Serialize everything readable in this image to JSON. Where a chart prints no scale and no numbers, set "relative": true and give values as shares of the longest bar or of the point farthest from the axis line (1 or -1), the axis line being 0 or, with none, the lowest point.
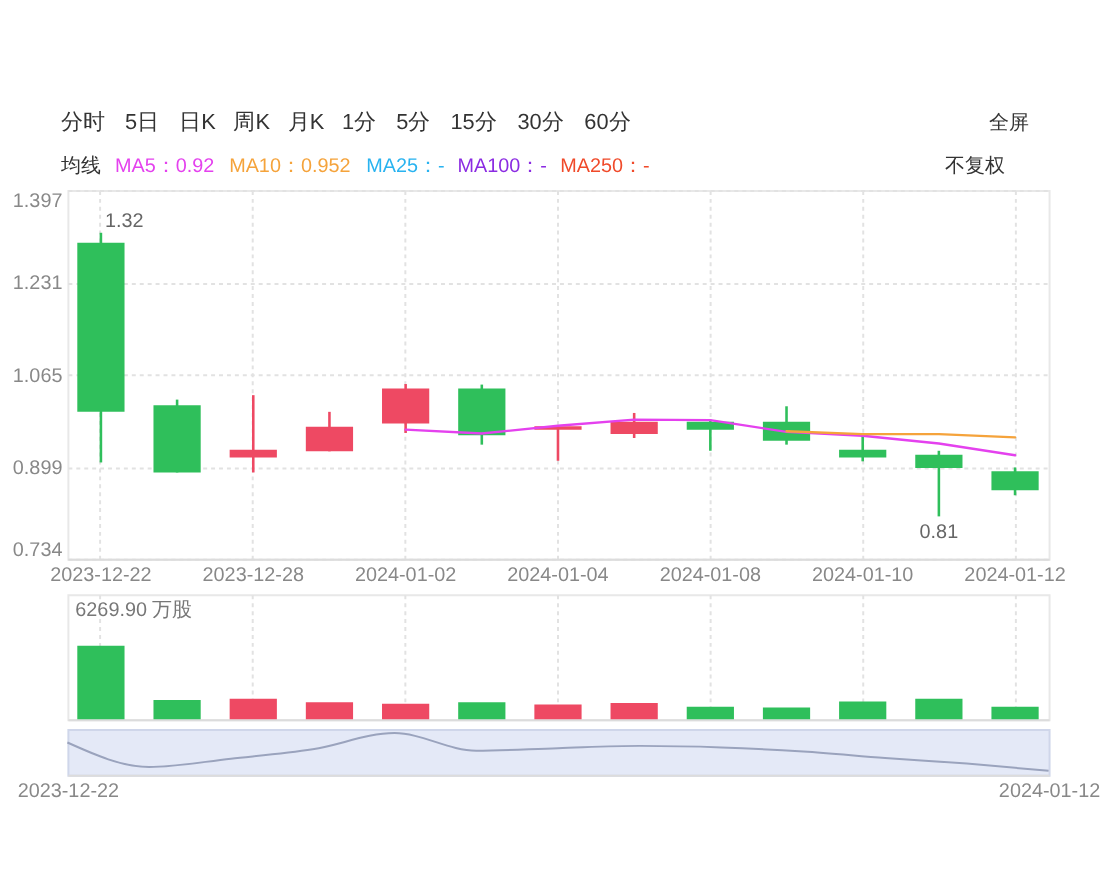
{
  "chart_data": [
    {
      "type": "candlestick",
      "annotations": [
        "分时",
        "5日",
        "日K",
        "周K",
        "月K",
        "1分",
        "5分",
        "15分",
        "30分",
        "60分",
        "全屏",
        "不复权",
        {
          "text": "1.32",
          "x": "2023-12-22",
          "y": 1.32
        },
        {
          "text": "0.81",
          "y": 0.81
        }
      ],
      "legend_title": "均线",
      "legend": "top left",
      "categories": [
        "2023-12-22",
        null,
        "2023-12-28",
        null,
        "2024-01-02",
        null,
        "2024-01-04",
        null,
        "2024-01-08",
        null,
        "2024-01-10",
        null,
        "2024-01-12"
      ],
      "ohlc": [
        [
          1.302,
          1.32,
          0.907,
          0.998
        ],
        [
          1.01,
          1.02,
          0.889,
          0.889
        ],
        [
          0.916,
          1.028,
          0.889,
          0.93
        ],
        [
          0.927,
          0.998,
          0.927,
          0.971
        ],
        [
          0.977,
          1.048,
          0.96,
          1.04
        ],
        [
          1.04,
          1.047,
          0.939,
          0.956
        ],
        [
          0.966,
          0.972,
          0.91,
          0.972
        ],
        [
          0.958,
          0.996,
          0.951,
          0.98
        ],
        [
          0.98,
          0.984,
          0.928,
          0.966
        ],
        [
          0.98,
          1.008,
          0.939,
          0.946
        ],
        [
          0.93,
          0.958,
          0.909,
          0.916
        ],
        [
          0.921,
          0.928,
          0.81,
          0.897
        ],
        [
          0.891,
          0.898,
          0.848,
          0.857
        ]
      ],
      "colors": [
        "#2fbf5b",
        "#2fbf5b",
        "#ee4963",
        "#ee4963",
        "#ee4963",
        "#2fbf5b",
        "#ee4963",
        "#ee4963",
        "#2fbf5b",
        "#2fbf5b",
        "#2fbf5b",
        "#2fbf5b",
        "#2fbf5b"
      ],
      "series": [
        {
          "name": "MA5：0.92",
          "type": "line",
          "color": "#e441ee",
          "values": [
            null,
            null,
            null,
            null,
            0.966,
            0.959,
            0.973,
            0.984,
            0.983,
            0.962,
            0.955,
            0.941,
            0.92
          ]
        },
        {
          "name": "MA10：0.952",
          "type": "line",
          "color": "#f5a33b",
          "values": [
            null,
            null,
            null,
            null,
            null,
            null,
            null,
            null,
            null,
            0.963,
            0.958,
            0.958,
            0.952
          ]
        },
        {
          "name": "MA25：-",
          "type": "line",
          "color": "#29b3f0",
          "values": [
            null,
            null,
            null,
            null,
            null,
            null,
            null,
            null,
            null,
            null,
            null,
            null,
            null
          ]
        },
        {
          "name": "MA100：-",
          "type": "line",
          "color": "#8b2be2",
          "values": [
            null,
            null,
            null,
            null,
            null,
            null,
            null,
            null,
            null,
            null,
            null,
            null,
            null
          ]
        },
        {
          "name": "MA250：-",
          "type": "line",
          "color": "#f04a2a",
          "values": [
            null,
            null,
            null,
            null,
            null,
            null,
            null,
            null,
            null,
            null,
            null,
            null,
            null
          ]
        }
      ],
      "ylim": [
        0.734,
        1.397
      ],
      "yticks": [
        0.734,
        0.899,
        1.065,
        1.231,
        1.397
      ],
      "grid": true
    },
    {
      "type": "bar",
      "annotations": [
        "6269.90 万股"
      ],
      "categories": [
        "2023-12-22",
        null,
        "2023-12-28",
        null,
        "2024-01-02",
        null,
        "2024-01-04",
        null,
        "2024-01-08",
        null,
        "2024-01-10",
        null,
        "2024-01-12"
      ],
      "values": [
        1,
        0.26,
        0.28,
        0.23,
        0.21,
        0.23,
        0.2,
        0.22,
        0.17,
        0.16,
        0.24,
        0.28,
        0.17
      ],
      "colors": [
        "#2fbf5b",
        "#2fbf5b",
        "#ee4963",
        "#ee4963",
        "#ee4963",
        "#2fbf5b",
        "#ee4963",
        "#ee4963",
        "#2fbf5b",
        "#2fbf5b",
        "#2fbf5b",
        "#2fbf5b",
        "#2fbf5b"
      ],
      "relative": true,
      "grid": "x",
      "tick_labels": false
    },
    {
      "type": "line",
      "categories": [
        "2023-12-22",
        null,
        null,
        null,
        null,
        null,
        null,
        null,
        null,
        null,
        null,
        null,
        "2024-01-12"
      ],
      "series": [
        {
          "color": "#9aa3bd",
          "values": [
            0.75,
            0.1,
            0.32,
            0.57,
            1,
            0.53,
            0.6,
            0.66,
            0.62,
            0.51,
            0.34,
            0.19,
            0
          ]
        }
      ],
      "relative": true,
      "tick_labels": "x"
    }
  ]
}
